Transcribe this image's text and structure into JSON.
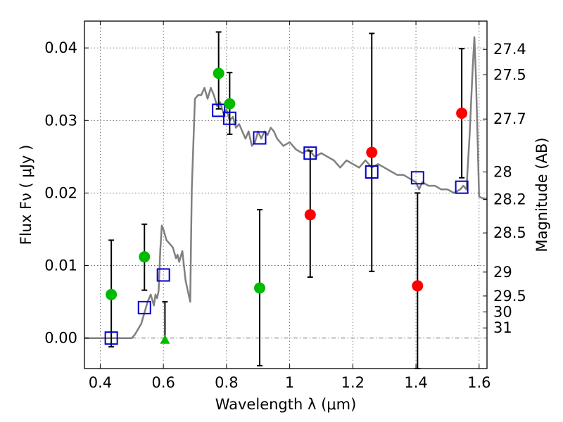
{
  "chart_data": {
    "type": "scatter",
    "title": "",
    "xlabel": "Wavelength  λ (μm)",
    "ylabel": "Flux  Fν  ( μJy )",
    "y2label": "Magnitude (AB)",
    "xlim": [
      0.35,
      1.625
    ],
    "ylim": [
      -0.0042,
      0.0437
    ],
    "grid": true,
    "xticks": [
      0.4,
      0.6,
      0.8,
      1.0,
      1.2,
      1.4,
      1.6
    ],
    "xtick_labels": [
      "0.4",
      "0.6",
      "0.8",
      "1",
      "1.2",
      "1.4",
      "1.6"
    ],
    "yticks": [
      0.0,
      0.01,
      0.02,
      0.03,
      0.04
    ],
    "ytick_labels": [
      "0.00",
      "0.01",
      "0.02",
      "0.03",
      "0.04"
    ],
    "mag_ticks": [
      {
        "label": "27.4",
        "flux": 0.0398
      },
      {
        "label": "27.5",
        "flux": 0.0363
      },
      {
        "label": "27.7",
        "flux": 0.0302
      },
      {
        "label": "28",
        "flux": 0.0229
      },
      {
        "label": "28.2",
        "flux": 0.0191
      },
      {
        "label": "28.5",
        "flux": 0.0145
      },
      {
        "label": "29",
        "flux": 0.0091
      },
      {
        "label": "29.5",
        "flux": 0.0058
      },
      {
        "label": "30",
        "flux": 0.0036
      },
      {
        "label": "31",
        "flux": 0.0014
      }
    ],
    "series": [
      {
        "name": "model-sed",
        "kind": "line",
        "color": "#808080",
        "x": [
          0.35,
          0.5,
          0.51,
          0.53,
          0.55,
          0.56,
          0.57,
          0.575,
          0.58,
          0.585,
          0.59,
          0.595,
          0.6,
          0.61,
          0.62,
          0.63,
          0.64,
          0.645,
          0.65,
          0.66,
          0.67,
          0.68,
          0.685,
          0.69,
          0.7,
          0.71,
          0.72,
          0.73,
          0.74,
          0.75,
          0.76,
          0.77,
          0.78,
          0.79,
          0.8,
          0.81,
          0.82,
          0.83,
          0.84,
          0.85,
          0.86,
          0.87,
          0.88,
          0.89,
          0.9,
          0.91,
          0.92,
          0.93,
          0.94,
          0.95,
          0.96,
          0.98,
          1.0,
          1.02,
          1.04,
          1.06,
          1.08,
          1.1,
          1.12,
          1.14,
          1.16,
          1.18,
          1.2,
          1.22,
          1.24,
          1.26,
          1.28,
          1.3,
          1.32,
          1.34,
          1.36,
          1.38,
          1.4,
          1.41,
          1.42,
          1.44,
          1.46,
          1.48,
          1.5,
          1.52,
          1.54,
          1.55,
          1.56,
          1.57,
          1.58,
          1.585,
          1.59,
          1.6,
          1.61,
          1.625
        ],
        "y": [
          0.0,
          0.0,
          0.0005,
          0.002,
          0.005,
          0.006,
          0.0045,
          0.006,
          0.0055,
          0.0065,
          0.012,
          0.0155,
          0.015,
          0.0135,
          0.013,
          0.0125,
          0.011,
          0.0115,
          0.0105,
          0.012,
          0.008,
          0.006,
          0.005,
          0.0205,
          0.033,
          0.0335,
          0.0335,
          0.0345,
          0.033,
          0.0345,
          0.0335,
          0.032,
          0.0325,
          0.031,
          0.0315,
          0.03,
          0.0305,
          0.029,
          0.0295,
          0.0285,
          0.0275,
          0.0285,
          0.0265,
          0.027,
          0.0285,
          0.0275,
          0.0285,
          0.028,
          0.029,
          0.0285,
          0.0275,
          0.0265,
          0.027,
          0.026,
          0.0255,
          0.026,
          0.025,
          0.0255,
          0.025,
          0.0245,
          0.0235,
          0.0245,
          0.024,
          0.0235,
          0.0245,
          0.0235,
          0.024,
          0.0235,
          0.023,
          0.0225,
          0.0225,
          0.022,
          0.0215,
          0.0205,
          0.0215,
          0.021,
          0.021,
          0.0205,
          0.0205,
          0.02,
          0.0205,
          0.021,
          0.0205,
          0.028,
          0.0375,
          0.0415,
          0.036,
          0.0195,
          0.0193,
          0.0192
        ]
      },
      {
        "name": "model-points",
        "kind": "open-square",
        "color": "#0000cc",
        "x": [
          0.435,
          0.54,
          0.6,
          0.775,
          0.81,
          0.905,
          1.065,
          1.26,
          1.405,
          1.545
        ],
        "y": [
          0.0,
          0.0042,
          0.0087,
          0.0314,
          0.0303,
          0.0276,
          0.0255,
          0.0229,
          0.0221,
          0.0208
        ]
      },
      {
        "name": "observed-green",
        "kind": "circle",
        "color": "#00bb00",
        "x": [
          0.435,
          0.54,
          0.775,
          0.81,
          0.905
        ],
        "y": [
          0.006,
          0.0112,
          0.0365,
          0.0323,
          0.0069
        ],
        "yerr_low": [
          0.0072,
          0.0046,
          0.0049,
          0.0042,
          0.0107
        ],
        "yerr_high": [
          0.0075,
          0.0045,
          0.0057,
          0.0043,
          0.0108
        ]
      },
      {
        "name": "observed-red",
        "kind": "circle",
        "color": "#ff0000",
        "x": [
          1.065,
          1.26,
          1.405,
          1.545
        ],
        "y": [
          0.017,
          0.0256,
          0.0072,
          0.031
        ],
        "yerr_low": [
          0.0086,
          0.0164,
          0.0114,
          0.0089
        ],
        "yerr_high": [
          0.0088,
          0.0164,
          0.0128,
          0.0089
        ]
      },
      {
        "name": "upper-limit",
        "kind": "triangle",
        "color": "#00bb00",
        "x": [
          0.605
        ],
        "y": [
          -0.0003
        ],
        "yerr_low": [
          0.0
        ],
        "yerr_high": [
          0.0053
        ]
      }
    ]
  }
}
